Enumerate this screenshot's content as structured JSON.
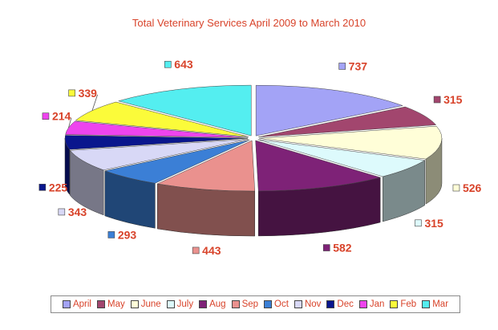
{
  "chart_data": {
    "type": "pie",
    "style": "3d-exploded",
    "title": "Total Veterinary Services April 2009 to March 2010",
    "legend_position": "bottom",
    "slices": [
      {
        "label": "April",
        "value": 737,
        "color": "#a3a3f6"
      },
      {
        "label": "May",
        "value": 315,
        "color": "#a2466e"
      },
      {
        "label": "June",
        "value": 526,
        "color": "#fffed8"
      },
      {
        "label": "July",
        "value": 315,
        "color": "#ddfafc"
      },
      {
        "label": "Aug",
        "value": 582,
        "color": "#7e2277"
      },
      {
        "label": "Sep",
        "value": 443,
        "color": "#ea918e"
      },
      {
        "label": "Oct",
        "value": 293,
        "color": "#3b7fd6"
      },
      {
        "label": "Nov",
        "value": 343,
        "color": "#d8d8f6"
      },
      {
        "label": "Dec",
        "value": 225,
        "color": "#0a168d"
      },
      {
        "label": "Jan",
        "value": 214,
        "color": "#ee44ee"
      },
      {
        "label": "Feb",
        "value": 339,
        "color": "#fbfb3a"
      },
      {
        "label": "Mar",
        "value": 643,
        "color": "#54eef0"
      }
    ]
  }
}
